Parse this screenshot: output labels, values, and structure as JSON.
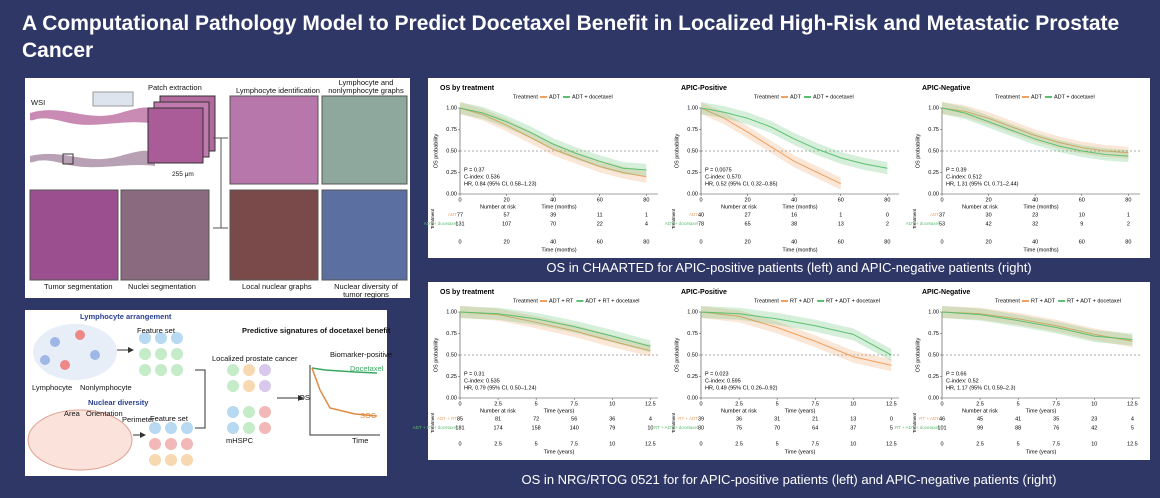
{
  "header": {
    "title": "A Computational Pathology Model to Predict Docetaxel Benefit in Localized High-Risk and Metastatic Prostate Cancer"
  },
  "pipeline": {
    "wsi": "WSI",
    "patch_extraction": "Patch extraction",
    "scale": "255 μm",
    "lymphocyte_identification": "Lymphocyte identification",
    "graphs": "Lymphocyte and nonlymphocyte graphs",
    "tumor_segmentation": "Tumor segmentation",
    "nuclei_segmentation": "Nuclei segmentation",
    "local_graphs": "Local nuclear graphs",
    "nuclear_diversity": "Nuclear diversity of tumor regions"
  },
  "schematic": {
    "lymphocyte_arrangement": "Lymphocyte arrangement",
    "feature_set_1": "Feature set",
    "lymphocyte": "Lymphocyte",
    "nonlymphocyte": "Nonlymphocyte",
    "nuclear_diversity": "Nuclear diversity",
    "area": "Area",
    "orientation": "Orientation",
    "perimeter": "Perimeter",
    "feature_set_2": "Feature set",
    "signatures": "Predictive signatures of docetaxel benefit",
    "localized": "Localized prostate cancer",
    "mhspc": "mHSPC",
    "biomarker_positive": "Biomarker-positive",
    "docetaxel": "Docetaxel",
    "soc": "SOC",
    "os": "OS",
    "time": "Time"
  },
  "trials": [
    {
      "caption": "OS in CHAARTED for APIC-positive patients (left) and APIC-negative patients (right)",
      "plots": [
        {
          "title": "OS by treatment",
          "legend_title": "Treatment",
          "xlabel": "Time (months)",
          "ylabel": "OS probability",
          "xlim": [
            0,
            85
          ],
          "ylim": [
            0,
            1
          ],
          "xticks": [
            0,
            20,
            40,
            60,
            80
          ],
          "yticks": [
            {
              "value": 0,
              "label": "0.00"
            },
            {
              "value": 0.25,
              "label": "0.25"
            },
            {
              "value": 0.5,
              "label": "0.50"
            },
            {
              "value": 0.75,
              "label": "0.75"
            },
            {
              "value": 1,
              "label": "1.00"
            }
          ],
          "stats": [
            "P = 0.37",
            "C-index: 0.536",
            "HR, 0.84 (95% CI, 0.58–1.23)"
          ],
          "series": [
            {
              "name": "ADT",
              "color": "#f0a060",
              "x": [
                0,
                10,
                20,
                30,
                40,
                50,
                60,
                70,
                80
              ],
              "y": [
                1,
                0.92,
                0.8,
                0.66,
                0.52,
                0.42,
                0.32,
                0.25,
                0.2
              ]
            },
            {
              "name": "ADT + docetaxel",
              "color": "#5cc070",
              "x": [
                0,
                10,
                20,
                30,
                40,
                50,
                60,
                70,
                80
              ],
              "y": [
                1,
                0.94,
                0.84,
                0.72,
                0.58,
                0.47,
                0.38,
                0.3,
                0.28
              ]
            }
          ],
          "risk_title": "Number at risk",
          "risk_label": "Treatment",
          "risk": [
            [
              77,
              57,
              39,
              11,
              1
            ],
            [
              131,
              107,
              70,
              22,
              4
            ]
          ]
        },
        {
          "title": "APIC-Positive",
          "legend_title": "Treatment",
          "xlabel": "Time (months)",
          "ylabel": "OS probability",
          "xlim": [
            0,
            85
          ],
          "ylim": [
            0,
            1
          ],
          "xticks": [
            0,
            20,
            40,
            60,
            80
          ],
          "yticks": [
            {
              "value": 0,
              "label": "0.00"
            },
            {
              "value": 0.25,
              "label": "0.25"
            },
            {
              "value": 0.5,
              "label": "0.50"
            },
            {
              "value": 0.75,
              "label": "0.75"
            },
            {
              "value": 1,
              "label": "1.00"
            }
          ],
          "stats": [
            "P = 0.0075",
            "C-index: 0.570",
            "HR, 0.52 (95% CI, 0.32–0.85)"
          ],
          "series": [
            {
              "name": "ADT",
              "color": "#f0a060",
              "x": [
                0,
                10,
                20,
                30,
                40,
                50,
                60
              ],
              "y": [
                1,
                0.88,
                0.72,
                0.55,
                0.38,
                0.25,
                0.12
              ]
            },
            {
              "name": "ADT + docetaxel",
              "color": "#5cc070",
              "x": [
                0,
                10,
                20,
                30,
                40,
                50,
                60,
                70,
                80
              ],
              "y": [
                1,
                0.95,
                0.88,
                0.78,
                0.64,
                0.52,
                0.42,
                0.35,
                0.3
              ]
            }
          ],
          "risk_title": "Number at risk",
          "risk_label": "Treatment",
          "risk": [
            [
              40,
              27,
              16,
              1,
              0
            ],
            [
              78,
              65,
              38,
              13,
              2
            ]
          ]
        },
        {
          "title": "APIC-Negative",
          "legend_title": "Treatment",
          "xlabel": "Time (months)",
          "ylabel": "OS probability",
          "xlim": [
            0,
            85
          ],
          "ylim": [
            0,
            1
          ],
          "xticks": [
            0,
            20,
            40,
            60,
            80
          ],
          "yticks": [
            {
              "value": 0,
              "label": "0.00"
            },
            {
              "value": 0.25,
              "label": "0.25"
            },
            {
              "value": 0.5,
              "label": "0.50"
            },
            {
              "value": 0.75,
              "label": "0.75"
            },
            {
              "value": 1,
              "label": "1.00"
            }
          ],
          "stats": [
            "P = 0.39",
            "C-index: 0.512",
            "HR, 1.31 (95% CI, 0.71–2.44)"
          ],
          "series": [
            {
              "name": "ADT",
              "color": "#f0a060",
              "x": [
                0,
                10,
                20,
                30,
                40,
                50,
                60,
                70,
                80
              ],
              "y": [
                1,
                0.96,
                0.88,
                0.78,
                0.68,
                0.6,
                0.54,
                0.5,
                0.48
              ]
            },
            {
              "name": "ADT + docetaxel",
              "color": "#5cc070",
              "x": [
                0,
                10,
                20,
                30,
                40,
                50,
                60,
                70,
                80
              ],
              "y": [
                1,
                0.94,
                0.84,
                0.74,
                0.64,
                0.56,
                0.5,
                0.46,
                0.44
              ]
            }
          ],
          "risk_title": "Number at risk",
          "risk_label": "Treatment",
          "risk": [
            [
              37,
              30,
              23,
              10,
              1
            ],
            [
              53,
              42,
              32,
              9,
              2
            ]
          ]
        }
      ]
    },
    {
      "caption": "OS in NRG/RTOG 0521 for for APIC-positive patients (left) and APIC-negative patients (right)",
      "plots": [
        {
          "title": "OS by treatment",
          "legend_title": "Treatment",
          "xlabel": "Time (years)",
          "ylabel": "OS probability",
          "xlim": [
            0,
            13
          ],
          "ylim": [
            0,
            1
          ],
          "xticks": [
            0,
            2.5,
            5,
            7.5,
            10,
            12.5
          ],
          "yticks": [
            {
              "value": 0,
              "label": "0.00"
            },
            {
              "value": 0.25,
              "label": "0.25"
            },
            {
              "value": 0.5,
              "label": "0.50"
            },
            {
              "value": 0.75,
              "label": "0.75"
            },
            {
              "value": 1,
              "label": "1.00"
            }
          ],
          "stats": [
            "P = 0.31",
            "C-index: 0.535",
            "HR, 0.79 (95% CI, 0.50–1.24)"
          ],
          "series": [
            {
              "name": "ADT + RT",
              "color": "#f0a060",
              "x": [
                0,
                2.5,
                5,
                7.5,
                10,
                12.5
              ],
              "y": [
                1,
                0.97,
                0.88,
                0.78,
                0.66,
                0.55
              ]
            },
            {
              "name": "ADT + RT + docetaxel",
              "color": "#5cc070",
              "x": [
                0,
                2.5,
                5,
                7.5,
                10,
                12.5
              ],
              "y": [
                1,
                0.98,
                0.92,
                0.83,
                0.72,
                0.6
              ]
            }
          ],
          "risk_title": "Number at risk",
          "risk_label": "Treatment",
          "risk": [
            [
              85,
              81,
              72,
              56,
              36,
              4
            ],
            [
              181,
              174,
              158,
              140,
              79,
              10
            ]
          ]
        },
        {
          "title": "APIC-Positive",
          "legend_title": "Treatment",
          "xlabel": "Time (years)",
          "ylabel": "OS probability",
          "xlim": [
            0,
            13
          ],
          "ylim": [
            0,
            1
          ],
          "xticks": [
            0,
            2.5,
            5,
            7.5,
            10,
            12.5
          ],
          "yticks": [
            {
              "value": 0,
              "label": "0.00"
            },
            {
              "value": 0.25,
              "label": "0.25"
            },
            {
              "value": 0.5,
              "label": "0.50"
            },
            {
              "value": 0.75,
              "label": "0.75"
            },
            {
              "value": 1,
              "label": "1.00"
            }
          ],
          "stats": [
            "P = 0.023",
            "C-index: 0.595",
            "HR, 0.49 (95% CI, 0.26–0.92)"
          ],
          "series": [
            {
              "name": "RT + ADT",
              "color": "#f0a060",
              "x": [
                0,
                2.5,
                5,
                7.5,
                10,
                12.5
              ],
              "y": [
                1,
                0.95,
                0.82,
                0.66,
                0.48,
                0.38
              ]
            },
            {
              "name": "RT + ADT + docetaxel",
              "color": "#5cc070",
              "x": [
                0,
                2.5,
                5,
                7.5,
                10,
                12.5
              ],
              "y": [
                1,
                0.98,
                0.92,
                0.84,
                0.74,
                0.5
              ]
            }
          ],
          "risk_title": "Number at risk",
          "risk_label": "Treatment",
          "risk": [
            [
              39,
              36,
              31,
              21,
              13,
              0
            ],
            [
              80,
              75,
              70,
              64,
              37,
              5
            ]
          ]
        },
        {
          "title": "APIC-Negative",
          "legend_title": "Treatment",
          "xlabel": "Time (years)",
          "ylabel": "OS probability",
          "xlim": [
            0,
            13
          ],
          "ylim": [
            0,
            1
          ],
          "xticks": [
            0,
            2.5,
            5,
            7.5,
            10,
            12.5
          ],
          "yticks": [
            {
              "value": 0,
              "label": "0.00"
            },
            {
              "value": 0.25,
              "label": "0.25"
            },
            {
              "value": 0.5,
              "label": "0.50"
            },
            {
              "value": 0.75,
              "label": "0.75"
            },
            {
              "value": 1,
              "label": "1.00"
            }
          ],
          "stats": [
            "P = 0.66",
            "C-index: 0.52",
            "HR, 1.17 (95% CI, 0.59–2.3)"
          ],
          "series": [
            {
              "name": "RT + ADT",
              "color": "#f0a060",
              "x": [
                0,
                2.5,
                5,
                7.5,
                10,
                12.5
              ],
              "y": [
                1,
                0.98,
                0.92,
                0.84,
                0.74,
                0.66
              ]
            },
            {
              "name": "RT + ADT + docetaxel",
              "color": "#5cc070",
              "x": [
                0,
                2.5,
                5,
                7.5,
                10,
                12.5
              ],
              "y": [
                1,
                0.97,
                0.9,
                0.82,
                0.72,
                0.68
              ]
            }
          ],
          "risk_title": "Number at risk",
          "risk_label": "Treatment",
          "risk": [
            [
              46,
              45,
              41,
              35,
              23,
              4
            ],
            [
              101,
              99,
              88,
              76,
              42,
              5
            ]
          ]
        }
      ]
    }
  ]
}
